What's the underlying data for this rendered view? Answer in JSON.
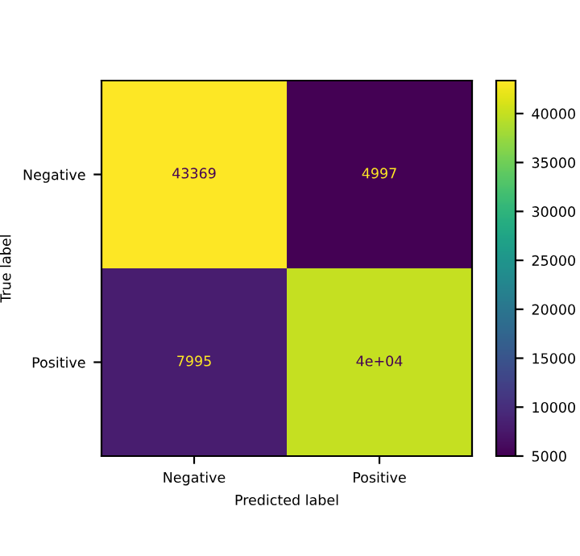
{
  "chart_data": {
    "type": "heatmap",
    "xlabel": "Predicted label",
    "ylabel": "True label",
    "categories": [
      "Negative",
      "Positive"
    ],
    "y_categories": [
      "Negative",
      "Positive"
    ],
    "cells": [
      [
        43369,
        4997
      ],
      [
        7995,
        40000
      ]
    ],
    "cell_labels": [
      [
        "43369",
        "4997"
      ],
      [
        "7995",
        "4e+04"
      ]
    ],
    "clim": [
      4997,
      43369
    ],
    "cticks": [
      5000,
      10000,
      15000,
      20000,
      25000,
      30000,
      35000,
      40000
    ]
  }
}
